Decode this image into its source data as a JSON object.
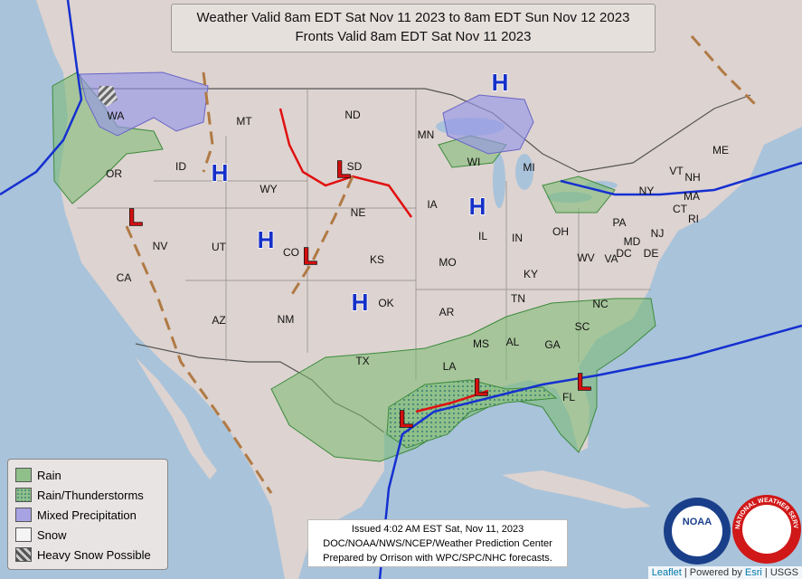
{
  "header": {
    "title_line1": "Weather Valid 8am EDT Sat Nov 11 2023 to 8am EDT Sun Nov 12 2023",
    "title_line2": "Fronts Valid 8am EDT Sat Nov 11 2023"
  },
  "legend": {
    "items": [
      {
        "label": "Rain",
        "color": "#8fc08a"
      },
      {
        "label": "Rain/Thunderstorms",
        "color": "#8fc08a"
      },
      {
        "label": "Mixed Precipitation",
        "color": "#a7a3e3"
      },
      {
        "label": "Snow",
        "color": "#f4f4f4"
      },
      {
        "label": "Heavy Snow Possible",
        "color": "#cfcfcf"
      }
    ]
  },
  "map": {
    "states": [
      "WA",
      "OR",
      "ID",
      "MT",
      "WY",
      "NV",
      "UT",
      "CO",
      "CA",
      "AZ",
      "NM",
      "ND",
      "SD",
      "NE",
      "KS",
      "OK",
      "TX",
      "MN",
      "IA",
      "MO",
      "AR",
      "LA",
      "WI",
      "IL",
      "MI",
      "IN",
      "OH",
      "KY",
      "TN",
      "MS",
      "AL",
      "GA",
      "FL",
      "SC",
      "NC",
      "VA",
      "WV",
      "PA",
      "NY",
      "ME",
      "VT",
      "NH",
      "MA",
      "CT",
      "RI",
      "NJ",
      "DE",
      "MD",
      "DC"
    ],
    "pressure_centers": [
      "H",
      "H",
      "H",
      "H",
      "H",
      "L",
      "L",
      "L",
      "L",
      "L",
      "L"
    ]
  },
  "issued": {
    "lines": [
      "Issued  4:02 AM EST  Sat, Nov 11, 2023",
      "DOC/NOAA/NWS/NCEP/Weather Prediction Center",
      "Prepared by Orrison with WPC/SPC/NHC forecasts."
    ]
  },
  "logos": {
    "noaa": "NOAA",
    "nws": "NATIONAL WEATHER SERVICE"
  },
  "attribution": {
    "leaflet": "Leaflet",
    "sep1": " | Powered by ",
    "esri": "Esri",
    "sep2": " | USGS"
  }
}
